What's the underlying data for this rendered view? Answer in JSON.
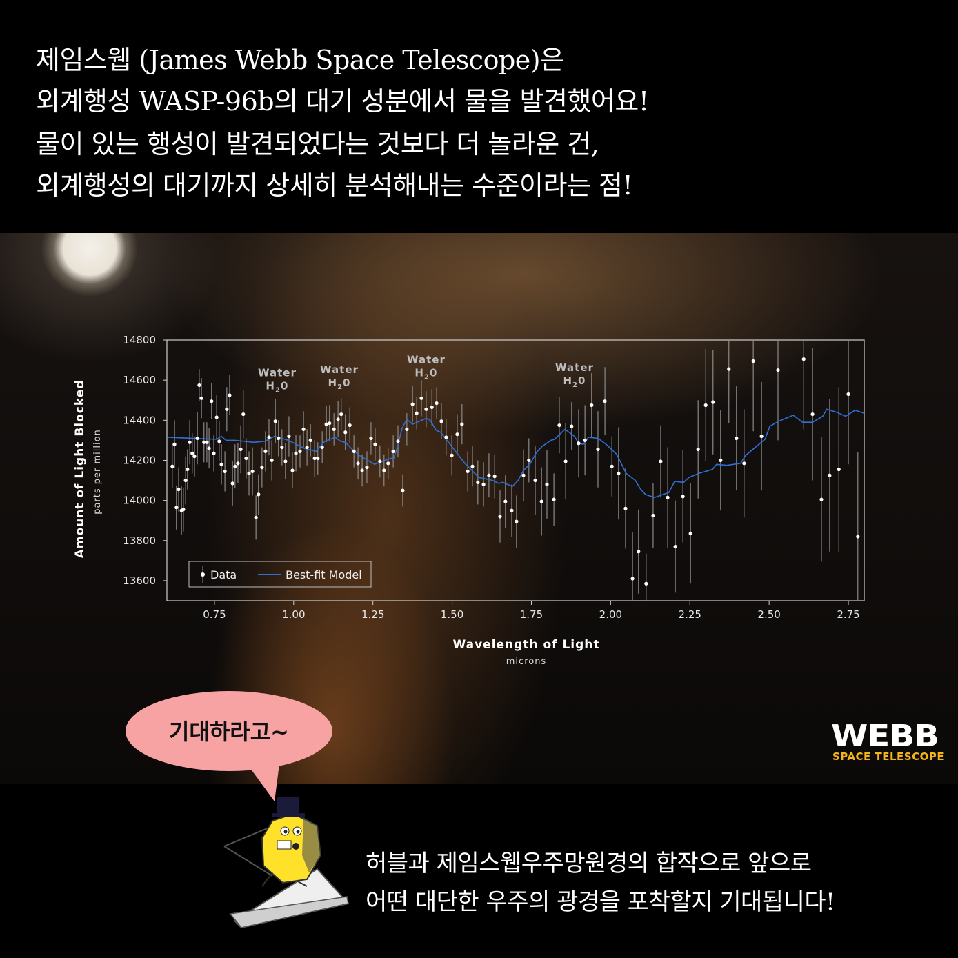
{
  "headline": {
    "lines": [
      "제임스웹 (James Webb Space Telescope)은",
      "외계행성 WASP-96b의 대기 성분에서 물을 발견했어요!",
      "물이 있는 행성이 발견되었다는 것보다 더 놀라운 건,",
      "외계행성의 대기까지 상세히 분석해내는 수준이라는 점!"
    ]
  },
  "speech_bubble": {
    "text": "기대하라고~",
    "color": "#f7a3a3"
  },
  "logo": {
    "main": "WEBB",
    "sub": "SPACE TELESCOPE",
    "sub_color": "#f4b41a"
  },
  "footer": {
    "lines": [
      "허블과 제임스웹우주망원경의 합작으로 앞으로",
      "어떤 대단한 우주의 광경을 포착할지 기대됩니다!"
    ]
  },
  "mascot": {
    "icon": "webb-telescope-mascot"
  },
  "chart_data": {
    "type": "scatter",
    "xlabel": "Wavelength of Light",
    "xlabel_sub": "microns",
    "ylabel": "Amount of Light Blocked",
    "ylabel_sub": "parts per million",
    "xlim": [
      0.6,
      2.8
    ],
    "ylim": [
      13500,
      14800
    ],
    "xticks": [
      "0.75",
      "1.00",
      "1.25",
      "1.50",
      "1.75",
      "2.00",
      "2.25",
      "2.50",
      "2.75"
    ],
    "yticks": [
      "13600",
      "13800",
      "14000",
      "14200",
      "14400",
      "14600",
      "14800"
    ],
    "grid": false,
    "legend": {
      "position": "bottom-left",
      "entries": [
        "Data",
        "Best-fit Model"
      ]
    },
    "colors": {
      "data": "#ffffff",
      "model": "#2f6fd6",
      "error_bar": "#8a8a8a"
    },
    "annotations": [
      {
        "title": "Water",
        "formula": "H",
        "sub": "2",
        "tail": "0",
        "x": 0.948,
        "y": 14620
      },
      {
        "title": "Water",
        "formula": "H",
        "sub": "2",
        "tail": "0",
        "x": 1.144,
        "y": 14635
      },
      {
        "title": "Water",
        "formula": "H",
        "sub": "2",
        "tail": "0",
        "x": 1.418,
        "y": 14685
      },
      {
        "title": "Water",
        "formula": "H",
        "sub": "2",
        "tail": "0",
        "x": 1.886,
        "y": 14645
      }
    ],
    "series": [
      {
        "name": "Data",
        "columns": [
          "x",
          "y",
          "err"
        ],
        "points": [
          [
            0.617,
            14170,
            110
          ],
          [
            0.624,
            14280,
            120
          ],
          [
            0.63,
            13965,
            110
          ],
          [
            0.637,
            14055,
            110
          ],
          [
            0.646,
            13950,
            120
          ],
          [
            0.652,
            13955,
            110
          ],
          [
            0.659,
            14100,
            120
          ],
          [
            0.665,
            14155,
            100
          ],
          [
            0.672,
            14290,
            110
          ],
          [
            0.68,
            14235,
            100
          ],
          [
            0.687,
            14220,
            100
          ],
          [
            0.696,
            14310,
            130
          ],
          [
            0.702,
            14575,
            80
          ],
          [
            0.709,
            14510,
            100
          ],
          [
            0.717,
            14290,
            100
          ],
          [
            0.726,
            14290,
            100
          ],
          [
            0.733,
            14260,
            100
          ],
          [
            0.741,
            14495,
            90
          ],
          [
            0.748,
            14235,
            90
          ],
          [
            0.757,
            14415,
            110
          ],
          [
            0.765,
            14295,
            100
          ],
          [
            0.772,
            14180,
            100
          ],
          [
            0.783,
            14145,
            100
          ],
          [
            0.789,
            14455,
            110
          ],
          [
            0.798,
            14525,
            100
          ],
          [
            0.807,
            14085,
            110
          ],
          [
            0.815,
            14170,
            110
          ],
          [
            0.824,
            14185,
            100
          ],
          [
            0.833,
            14255,
            120
          ],
          [
            0.841,
            14430,
            120
          ],
          [
            0.85,
            14210,
            100
          ],
          [
            0.859,
            14135,
            110
          ],
          [
            0.87,
            14145,
            120
          ],
          [
            0.881,
            13915,
            110
          ],
          [
            0.889,
            14030,
            100
          ],
          [
            0.9,
            14165,
            100
          ],
          [
            0.911,
            14245,
            100
          ],
          [
            0.922,
            14315,
            90
          ],
          [
            0.931,
            14200,
            100
          ],
          [
            0.942,
            14395,
            110
          ],
          [
            0.952,
            14310,
            90
          ],
          [
            0.963,
            14265,
            90
          ],
          [
            0.974,
            14195,
            90
          ],
          [
            0.985,
            14320,
            100
          ],
          [
            0.996,
            14150,
            90
          ],
          [
            1.007,
            14235,
            90
          ],
          [
            1.02,
            14245,
            80
          ],
          [
            1.031,
            14355,
            90
          ],
          [
            1.042,
            14265,
            90
          ],
          [
            1.053,
            14300,
            80
          ],
          [
            1.066,
            14210,
            90
          ],
          [
            1.076,
            14210,
            80
          ],
          [
            1.09,
            14265,
            80
          ],
          [
            1.103,
            14380,
            90
          ],
          [
            1.113,
            14385,
            90
          ],
          [
            1.127,
            14355,
            80
          ],
          [
            1.14,
            14405,
            90
          ],
          [
            1.15,
            14430,
            80
          ],
          [
            1.163,
            14340,
            90
          ],
          [
            1.177,
            14375,
            90
          ],
          [
            1.19,
            14245,
            80
          ],
          [
            1.203,
            14185,
            80
          ],
          [
            1.216,
            14150,
            80
          ],
          [
            1.231,
            14165,
            80
          ],
          [
            1.244,
            14310,
            80
          ],
          [
            1.257,
            14280,
            80
          ],
          [
            1.272,
            14195,
            80
          ],
          [
            1.285,
            14150,
            80
          ],
          [
            1.298,
            14185,
            80
          ],
          [
            1.314,
            14245,
            80
          ],
          [
            1.329,
            14295,
            80
          ],
          [
            1.344,
            14050,
            80
          ],
          [
            1.357,
            14355,
            80
          ],
          [
            1.375,
            14480,
            90
          ],
          [
            1.388,
            14435,
            80
          ],
          [
            1.403,
            14510,
            90
          ],
          [
            1.418,
            14455,
            90
          ],
          [
            1.436,
            14465,
            90
          ],
          [
            1.451,
            14485,
            80
          ],
          [
            1.466,
            14395,
            90
          ],
          [
            1.481,
            14315,
            90
          ],
          [
            1.499,
            14225,
            100
          ],
          [
            1.516,
            14330,
            100
          ],
          [
            1.531,
            14380,
            100
          ],
          [
            1.549,
            14145,
            100
          ],
          [
            1.564,
            14170,
            100
          ],
          [
            1.581,
            14090,
            110
          ],
          [
            1.599,
            14080,
            110
          ],
          [
            1.616,
            14125,
            110
          ],
          [
            1.634,
            14120,
            110
          ],
          [
            1.651,
            13920,
            130
          ],
          [
            1.668,
            13995,
            130
          ],
          [
            1.688,
            13950,
            130
          ],
          [
            1.703,
            13895,
            130
          ],
          [
            1.725,
            14125,
            130
          ],
          [
            1.742,
            14200,
            110
          ],
          [
            1.762,
            14100,
            170
          ],
          [
            1.782,
            13995,
            170
          ],
          [
            1.799,
            14080,
            170
          ],
          [
            1.821,
            14005,
            130
          ],
          [
            1.838,
            14375,
            140
          ],
          [
            1.858,
            14195,
            190
          ],
          [
            1.877,
            14370,
            120
          ],
          [
            1.899,
            14285,
            170
          ],
          [
            1.919,
            14300,
            175
          ],
          [
            1.94,
            14475,
            160
          ],
          [
            1.96,
            14255,
            190
          ],
          [
            1.982,
            14495,
            170
          ],
          [
            2.004,
            14170,
            150
          ],
          [
            2.025,
            14135,
            230
          ],
          [
            2.047,
            13960,
            200
          ],
          [
            2.069,
            13610,
            230
          ],
          [
            2.088,
            13745,
            210
          ],
          [
            2.112,
            13585,
            150
          ],
          [
            2.134,
            13925,
            160
          ],
          [
            2.158,
            14195,
            180
          ],
          [
            2.18,
            14015,
            250
          ],
          [
            2.204,
            13770,
            230
          ],
          [
            2.228,
            14020,
            230
          ],
          [
            2.252,
            13835,
            250
          ],
          [
            2.276,
            14255,
            245
          ],
          [
            2.3,
            14475,
            280
          ],
          [
            2.323,
            14490,
            260
          ],
          [
            2.347,
            14200,
            250
          ],
          [
            2.373,
            14655,
            270
          ],
          [
            2.397,
            14310,
            260
          ],
          [
            2.421,
            14185,
            270
          ],
          [
            2.45,
            14695,
            350
          ],
          [
            2.476,
            14320,
            270
          ],
          [
            2.528,
            14650,
            350
          ],
          [
            2.609,
            14705,
            350
          ],
          [
            2.637,
            14430,
            330
          ],
          [
            2.665,
            14005,
            310
          ],
          [
            2.691,
            14125,
            380
          ],
          [
            2.72,
            14155,
            410
          ],
          [
            2.75,
            14530,
            350
          ],
          [
            2.78,
            13820,
            420
          ]
        ]
      },
      {
        "name": "Best-fit Model",
        "columns": [
          "x",
          "y"
        ],
        "points": [
          [
            0.602,
            14315
          ],
          [
            0.757,
            14305
          ],
          [
            0.772,
            14320
          ],
          [
            0.787,
            14300
          ],
          [
            0.815,
            14300
          ],
          [
            0.874,
            14290
          ],
          [
            0.909,
            14295
          ],
          [
            0.939,
            14320
          ],
          [
            0.952,
            14315
          ],
          [
            0.983,
            14300
          ],
          [
            1.033,
            14260
          ],
          [
            1.07,
            14245
          ],
          [
            1.098,
            14295
          ],
          [
            1.131,
            14315
          ],
          [
            1.148,
            14295
          ],
          [
            1.163,
            14290
          ],
          [
            1.185,
            14255
          ],
          [
            1.207,
            14225
          ],
          [
            1.255,
            14180
          ],
          [
            1.305,
            14210
          ],
          [
            1.316,
            14210
          ],
          [
            1.327,
            14265
          ],
          [
            1.342,
            14360
          ],
          [
            1.357,
            14405
          ],
          [
            1.375,
            14380
          ],
          [
            1.418,
            14410
          ],
          [
            1.431,
            14400
          ],
          [
            1.449,
            14350
          ],
          [
            1.464,
            14340
          ],
          [
            1.496,
            14275
          ],
          [
            1.54,
            14185
          ],
          [
            1.584,
            14115
          ],
          [
            1.627,
            14100
          ],
          [
            1.647,
            14085
          ],
          [
            1.66,
            14090
          ],
          [
            1.69,
            14070
          ],
          [
            1.708,
            14100
          ],
          [
            1.725,
            14150
          ],
          [
            1.747,
            14185
          ],
          [
            1.766,
            14240
          ],
          [
            1.784,
            14270
          ],
          [
            1.812,
            14300
          ],
          [
            1.823,
            14305
          ],
          [
            1.856,
            14355
          ],
          [
            1.886,
            14320
          ],
          [
            1.899,
            14285
          ],
          [
            1.914,
            14280
          ],
          [
            1.93,
            14315
          ],
          [
            1.96,
            14310
          ],
          [
            1.986,
            14280
          ],
          [
            2.019,
            14230
          ],
          [
            2.049,
            14135
          ],
          [
            2.078,
            14100
          ],
          [
            2.095,
            14055
          ],
          [
            2.11,
            14030
          ],
          [
            2.138,
            14015
          ],
          [
            2.184,
            14040
          ],
          [
            2.202,
            14095
          ],
          [
            2.23,
            14090
          ],
          [
            2.247,
            14115
          ],
          [
            2.278,
            14135
          ],
          [
            2.321,
            14155
          ],
          [
            2.334,
            14180
          ],
          [
            2.367,
            14175
          ],
          [
            2.41,
            14185
          ],
          [
            2.426,
            14225
          ],
          [
            2.487,
            14305
          ],
          [
            2.502,
            14370
          ],
          [
            2.53,
            14395
          ],
          [
            2.576,
            14425
          ],
          [
            2.606,
            14390
          ],
          [
            2.637,
            14390
          ],
          [
            2.669,
            14420
          ],
          [
            2.682,
            14455
          ],
          [
            2.713,
            14440
          ],
          [
            2.741,
            14420
          ],
          [
            2.771,
            14450
          ],
          [
            2.8,
            14435
          ]
        ]
      }
    ]
  }
}
